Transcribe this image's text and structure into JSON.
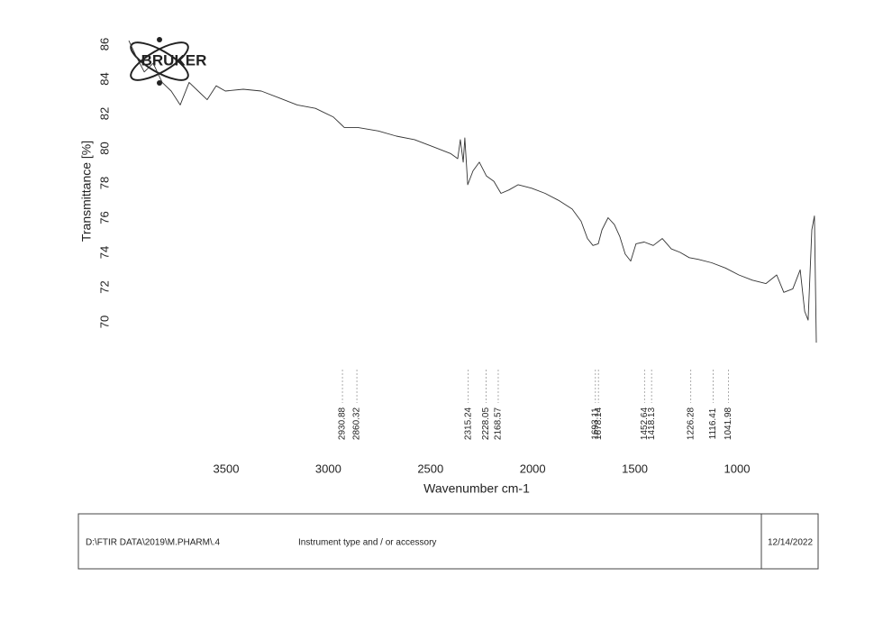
{
  "chart_data": {
    "type": "line",
    "logo_text": "BRUKER",
    "x_label": "Wavenumber cm-1",
    "y_label": "Transmittance [%]",
    "x": [
      3976,
      3945,
      3901,
      3857,
      3813,
      3769,
      3725,
      3681,
      3637,
      3593,
      3549,
      3504,
      3416,
      3328,
      3240,
      3152,
      3063,
      2975,
      2922,
      2856,
      2755,
      2667,
      2578,
      2490,
      2402,
      2367,
      2354,
      2340,
      2332,
      2318,
      2292,
      2261,
      2226,
      2190,
      2155,
      2116,
      2071,
      2005,
      1939,
      1873,
      1807,
      1763,
      1732,
      1705,
      1679,
      1661,
      1631,
      1600,
      1573,
      1547,
      1520,
      1494,
      1454,
      1410,
      1366,
      1322,
      1278,
      1234,
      1190,
      1124,
      1057,
      991,
      925,
      859,
      806,
      771,
      727,
      691,
      669,
      652,
      634,
      621,
      612
    ],
    "values": [
      86.2,
      85.4,
      84.4,
      84.9,
      83.8,
      83.3,
      82.5,
      83.8,
      83.3,
      82.8,
      83.6,
      83.3,
      83.4,
      83.3,
      82.9,
      82.5,
      82.3,
      81.8,
      81.2,
      81.2,
      81.0,
      80.7,
      80.5,
      80.1,
      79.7,
      79.4,
      80.5,
      79.2,
      80.6,
      77.9,
      78.7,
      79.2,
      78.4,
      78.1,
      77.4,
      77.6,
      77.9,
      77.7,
      77.4,
      77.0,
      76.5,
      75.8,
      74.8,
      74.4,
      74.5,
      75.3,
      76.0,
      75.6,
      74.9,
      73.9,
      73.5,
      74.5,
      74.6,
      74.4,
      74.8,
      74.2,
      74.0,
      73.7,
      73.6,
      73.4,
      73.1,
      72.7,
      72.4,
      72.2,
      72.7,
      71.7,
      71.9,
      73.0,
      70.6,
      70.1,
      75.3,
      76.1,
      68.8
    ],
    "color": "#333333",
    "xlim": [
      4000,
      600
    ],
    "ylim": [
      68,
      87
    ],
    "xticks": [
      3500,
      3000,
      2500,
      2000,
      1500,
      1000
    ],
    "yticks": [
      70,
      72,
      74,
      76,
      78,
      80,
      82,
      84,
      86
    ],
    "peaks": [
      2930.88,
      2860.32,
      2315.24,
      2228.05,
      2168.57,
      1693.11,
      1678.14,
      1452.64,
      1418.13,
      1226.28,
      1116.41,
      1041.98
    ]
  },
  "footer": {
    "file": "D:\\FTIR DATA\\2019\\M.PHARM\\.4",
    "instrument": "Instrument type and / or accessory",
    "date": "12/14/2022"
  }
}
